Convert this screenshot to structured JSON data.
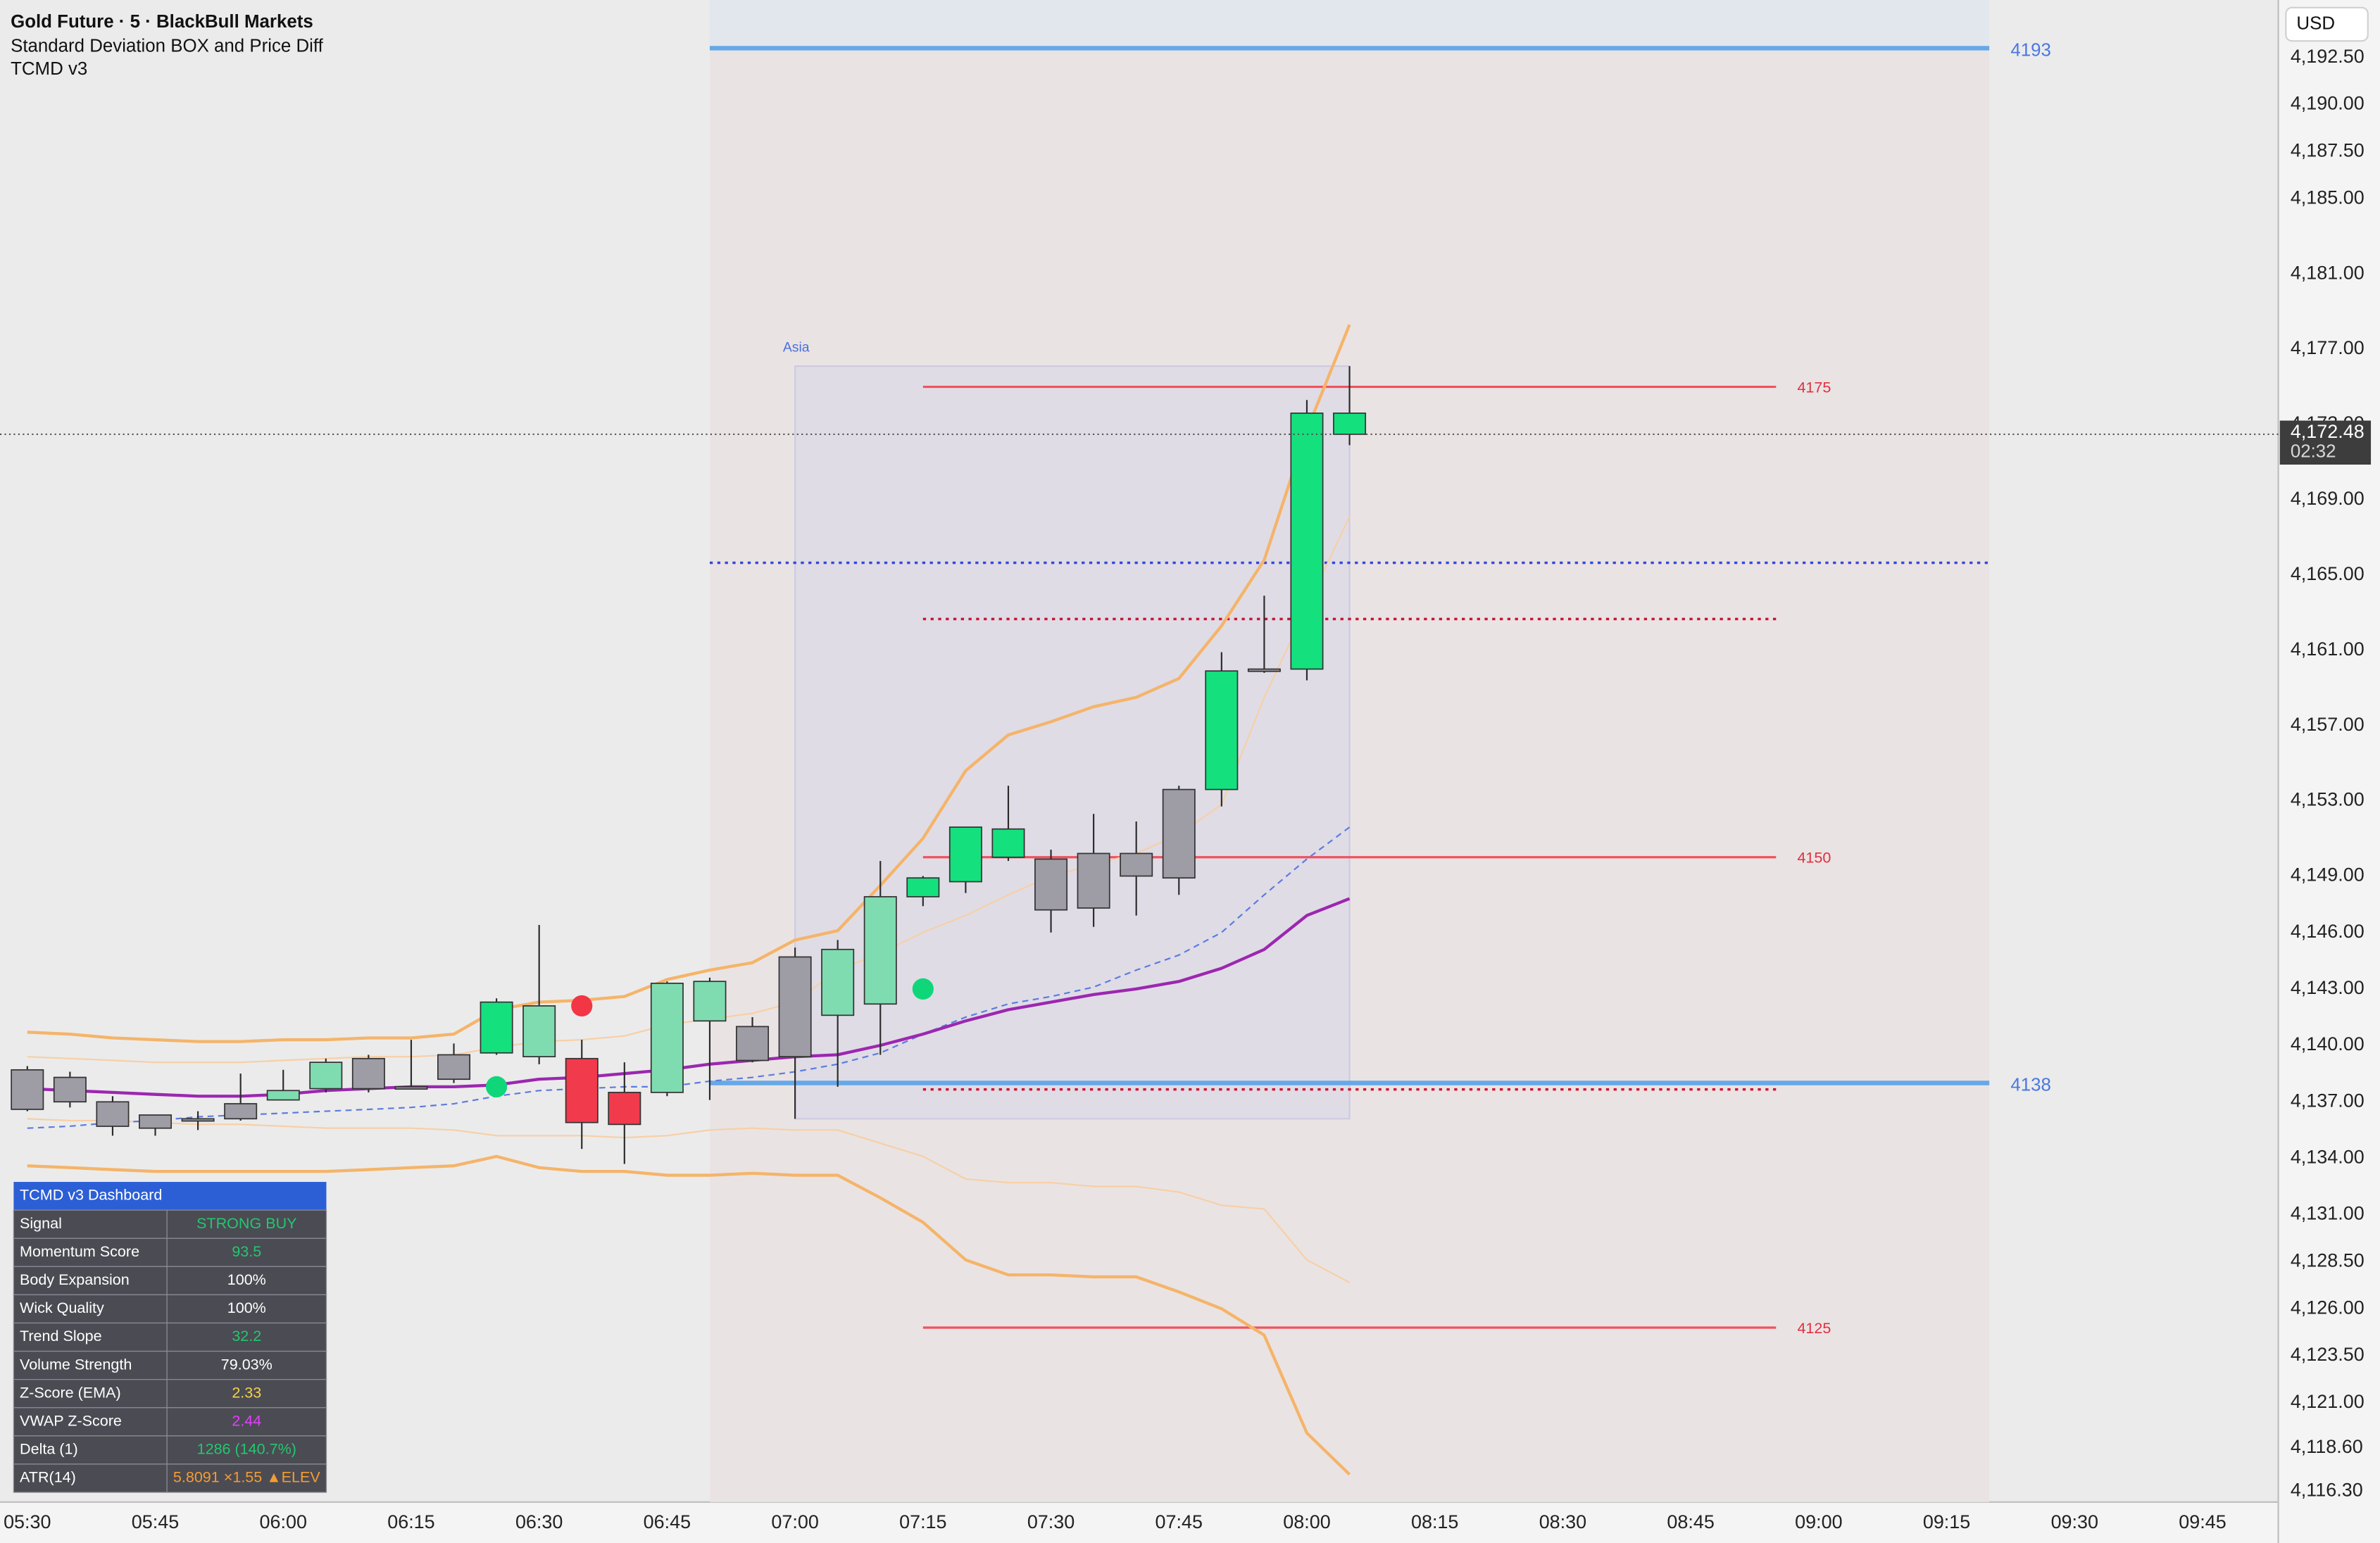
{
  "header": {
    "title": "Gold Future · 5 · BlackBull Markets",
    "indicators": [
      "Standard Deviation BOX and Price Diff",
      "TCMD v3"
    ],
    "currency": "USD"
  },
  "chart_data": {
    "type": "candlestick",
    "categories": [
      "05:30",
      null,
      null,
      "05:45",
      null,
      null,
      "06:00",
      null,
      null,
      "06:15",
      null,
      null,
      "06:30",
      null,
      null,
      "06:45",
      null,
      null,
      "07:00",
      null,
      null,
      "07:15",
      null,
      null,
      "07:30",
      null,
      null,
      "07:45",
      null,
      null,
      "08:00",
      null,
      null,
      "08:15",
      null,
      null,
      "08:30",
      null,
      null,
      "08:45",
      null,
      null,
      "09:00",
      null,
      null,
      "09:15",
      null,
      null,
      "09:30",
      null,
      null,
      "09:45"
    ],
    "open": [
      4136.6,
      4138.3,
      4137.0,
      4135.6,
      4136.1,
      4136.1,
      4137.1,
      4137.7,
      4137.7,
      4137.8,
      4138.2,
      4139.6,
      4139.4,
      4139.3,
      4137.5,
      4137.5,
      4141.3,
      4141.0,
      4139.4,
      4141.6,
      4142.2,
      4147.9,
      4148.7,
      4150.0,
      4149.9,
      4147.3,
      4149.0,
      4148.9,
      4153.6,
      4159.9,
      4160.0,
      4173.6,
      null,
      null,
      null,
      null,
      null,
      null,
      null,
      null,
      null,
      null,
      null,
      null,
      null,
      null,
      null,
      null,
      null,
      null,
      null,
      null
    ],
    "high": [
      4138.9,
      4138.6,
      4137.3,
      4136.3,
      4136.5,
      4138.5,
      4138.7,
      4139.3,
      4139.5,
      4140.3,
      4140.1,
      4142.5,
      4146.4,
      4140.3,
      4139.1,
      4143.4,
      4143.6,
      4141.5,
      4145.2,
      4145.6,
      4149.8,
      4149.0,
      4151.6,
      4153.8,
      4150.4,
      4152.3,
      4151.9,
      4153.8,
      4160.9,
      4163.9,
      4174.3,
      4176.1,
      null,
      null,
      null,
      null,
      null,
      null,
      null,
      null,
      null,
      null,
      null,
      null,
      null,
      null,
      null,
      null,
      null,
      null,
      null,
      null
    ],
    "low": [
      4136.5,
      4136.7,
      4135.2,
      4135.2,
      4135.5,
      4136.0,
      4137.1,
      4137.5,
      4137.5,
      4137.7,
      4138.0,
      4139.5,
      4139.0,
      4134.5,
      4133.7,
      4137.3,
      4137.1,
      4139.1,
      4136.1,
      4137.8,
      4139.5,
      4147.4,
      4148.1,
      4149.8,
      4146.0,
      4146.3,
      4146.9,
      4148.0,
      4152.7,
      4159.8,
      4159.4,
      4171.9,
      null,
      null,
      null,
      null,
      null,
      null,
      null,
      null,
      null,
      null,
      null,
      null,
      null,
      null,
      null,
      null,
      null,
      null,
      null,
      null
    ],
    "close": [
      4138.7,
      4137.0,
      4135.7,
      4136.3,
      4136.1,
      4136.9,
      4137.6,
      4139.1,
      4139.3,
      4137.8,
      4139.5,
      4142.3,
      4142.1,
      4135.9,
      4135.8,
      4143.3,
      4143.4,
      4139.2,
      4144.7,
      4145.1,
      4147.9,
      4148.9,
      4151.6,
      4151.5,
      4147.2,
      4150.2,
      4150.2,
      4153.6,
      4159.9,
      4160.0,
      4173.6,
      4172.48,
      null,
      null,
      null,
      null,
      null,
      null,
      null,
      null,
      null,
      null,
      null,
      null,
      null,
      null,
      null,
      null,
      null,
      null,
      null,
      null
    ],
    "bar_colors": [
      "#9e9da6",
      "#9e9da6",
      "#9e9da6",
      "#9e9da6",
      "#9e9da6",
      "#9e9da6",
      "#7fdcb0",
      "#7fdcb0",
      "#9e9da6",
      "#9e9da6",
      "#9e9da6",
      "#15e07e",
      "#7fdcb0",
      "#f23a4d",
      "#f23a4d",
      "#7fdcb0",
      "#7fdcb0",
      "#9e9da6",
      "#9e9da6",
      "#7fdcb0",
      "#7fdcb0",
      "#15e07e",
      "#15e07e",
      "#15e07e",
      "#9e9da6",
      "#9e9da6",
      "#9e9da6",
      "#9e9da6",
      "#15e07e",
      "#9e9da6",
      "#15e07e",
      "#15e07e",
      null,
      null,
      null,
      null,
      null,
      null,
      null,
      null,
      null,
      null,
      null,
      null,
      null,
      null,
      null,
      null,
      null,
      null,
      null,
      null
    ],
    "lines": [
      {
        "color": "#f5b469",
        "width": 2,
        "dashed": false,
        "values": [
          4140.7,
          4140.6,
          4140.4,
          4140.3,
          4140.2,
          4140.2,
          4140.3,
          4140.3,
          4140.4,
          4140.4,
          4140.6,
          4141.9,
          4142.3,
          4142.4,
          4142.6,
          4143.5,
          4144.0,
          4144.4,
          4145.6,
          4146.1,
          4148.5,
          4151.0,
          4154.6,
          4156.5,
          4157.2,
          4158.0,
          4158.5,
          4159.5,
          4162.3,
          4165.8,
          4172.7,
          4178.3,
          null,
          null,
          null,
          null,
          null,
          null,
          null,
          null,
          null,
          null,
          null,
          null,
          null,
          null,
          null,
          null,
          null,
          null,
          null,
          null
        ]
      },
      {
        "color": "#f7cfa6",
        "width": 1,
        "dashed": false,
        "values": [
          4139.4,
          4139.3,
          4139.2,
          4139.1,
          4139.1,
          4139.1,
          4139.2,
          4139.3,
          4139.4,
          4139.4,
          4139.5,
          4139.9,
          4140.2,
          4140.3,
          4140.5,
          4141.1,
          4141.4,
          4141.7,
          4142.3,
          4144.0,
          4144.9,
          4146.0,
          4146.9,
          4148.0,
          4149.0,
          4149.6,
          4150.2,
          4151.2,
          4152.8,
          4158.5,
          4163.3,
          4168.1,
          null,
          null,
          null,
          null,
          null,
          null,
          null,
          null,
          null,
          null,
          null,
          null,
          null,
          null,
          null,
          null,
          null,
          null,
          null,
          null
        ]
      },
      {
        "color": "#f7cfa6",
        "width": 1,
        "dashed": false,
        "values": [
          4136.1,
          4136.0,
          4136.0,
          4135.9,
          4135.8,
          4135.8,
          4135.7,
          4135.6,
          4135.6,
          4135.6,
          4135.5,
          4135.2,
          4135.2,
          4135.2,
          4135.1,
          4135.2,
          4135.5,
          4135.6,
          4135.5,
          4135.5,
          4134.8,
          4134.1,
          4132.9,
          4132.7,
          4132.7,
          4132.5,
          4132.5,
          4132.2,
          4131.5,
          4131.3,
          4128.6,
          4127.4,
          null,
          null,
          null,
          null,
          null,
          null,
          null,
          null,
          null,
          null,
          null,
          null,
          null,
          null,
          null,
          null,
          null,
          null,
          null,
          null
        ]
      },
      {
        "color": "#f5b469",
        "width": 2,
        "dashed": false,
        "values": [
          4133.6,
          4133.5,
          4133.4,
          4133.3,
          4133.3,
          4133.3,
          4133.3,
          4133.3,
          4133.4,
          4133.5,
          4133.6,
          4134.1,
          4133.5,
          4133.3,
          4133.3,
          4133.1,
          4133.1,
          4133.2,
          4133.1,
          4133.1,
          4131.9,
          4130.6,
          4128.6,
          4127.8,
          4127.8,
          4127.7,
          4127.7,
          4126.9,
          4126.0,
          4124.6,
          4119.4,
          4117.2,
          null,
          null,
          null,
          null,
          null,
          null,
          null,
          null,
          null,
          null,
          null,
          null,
          null,
          null,
          null,
          null,
          null,
          null,
          null,
          null
        ]
      },
      {
        "color": "#5b7be0",
        "width": 1,
        "dashed": true,
        "values": [
          4135.6,
          4135.7,
          4135.9,
          4136.0,
          4136.2,
          4136.3,
          4136.4,
          4136.5,
          4136.6,
          4136.7,
          4136.9,
          4137.3,
          4137.6,
          4137.7,
          4137.8,
          4137.8,
          4138.1,
          4138.3,
          4138.6,
          4139.0,
          4139.6,
          4140.6,
          4141.5,
          4142.2,
          4142.6,
          4143.1,
          4144.0,
          4144.8,
          4146.0,
          4148.0,
          4149.9,
          4151.6,
          null,
          null,
          null,
          null,
          null,
          null,
          null,
          null,
          null,
          null,
          null,
          null,
          null,
          null,
          null,
          null,
          null,
          null,
          null,
          null
        ]
      },
      {
        "color": "#9c27b0",
        "width": 2,
        "dashed": false,
        "values": [
          4137.7,
          4137.6,
          4137.5,
          4137.4,
          4137.3,
          4137.3,
          4137.4,
          4137.6,
          4137.7,
          4137.8,
          4137.8,
          4137.9,
          4138.2,
          4138.3,
          4138.5,
          4138.7,
          4139.0,
          4139.2,
          4139.4,
          4139.5,
          4140.0,
          4140.6,
          4141.3,
          4141.9,
          4142.3,
          4142.7,
          4143.0,
          4143.4,
          4144.1,
          4145.1,
          4146.9,
          4147.8,
          null,
          null,
          null,
          null,
          null,
          null,
          null,
          null,
          null,
          null,
          null,
          null,
          null,
          null,
          null,
          null,
          null,
          null,
          null,
          null
        ]
      }
    ],
    "buy_signals": {
      "color": "#10d67a",
      "values": [
        null,
        null,
        null,
        null,
        null,
        null,
        null,
        null,
        null,
        null,
        null,
        4137.8,
        null,
        null,
        null,
        null,
        null,
        null,
        null,
        null,
        null,
        4143.0,
        null,
        null,
        null,
        null,
        null,
        null,
        null,
        null,
        null,
        null,
        null,
        null,
        null,
        null,
        null,
        null,
        null,
        null,
        null,
        null,
        null,
        null,
        null,
        null,
        null,
        null,
        null,
        null,
        null,
        null
      ]
    },
    "sell_signals": {
      "color": "#f23645",
      "values": [
        null,
        null,
        null,
        null,
        null,
        null,
        null,
        null,
        null,
        null,
        null,
        null,
        null,
        4142.1,
        null,
        null,
        null,
        null,
        null,
        null,
        null,
        null,
        null,
        null,
        null,
        null,
        null,
        null,
        null,
        null,
        null,
        null,
        null,
        null,
        null,
        null,
        null,
        null,
        null,
        null,
        null,
        null,
        null,
        null,
        null,
        null,
        null,
        null,
        null,
        null,
        null,
        null
      ]
    },
    "session_levels": [
      {
        "value": 4193,
        "color": "#64a8e8",
        "dotted": false
      },
      {
        "value": 4165.65,
        "color": "#3348e0",
        "dotted": true
      },
      {
        "value": 4138,
        "color": "#64a8e8",
        "dotted": false
      }
    ],
    "range_levels": [
      {
        "value": 4175,
        "color": "#f0525e",
        "dotted": false
      },
      {
        "value": 4162.66,
        "color": "#d01030",
        "dotted": true
      },
      {
        "value": 4150,
        "color": "#f0525e",
        "dotted": false
      },
      {
        "value": 4137.66,
        "color": "#d01030",
        "dotted": true
      },
      {
        "value": 4125,
        "color": "#f0525e",
        "dotted": false
      }
    ],
    "asia_box": {
      "label": "Asia",
      "top": 4176.1,
      "bottom": 4136.1
    },
    "last_price": {
      "value": 4172.48,
      "label": "4,172.48"
    },
    "countdown": "02:32",
    "ylim": [
      4115.73,
      4195.56
    ],
    "yticks": [
      {
        "value": 4192.5,
        "label": "4,192.50"
      },
      {
        "value": 4190,
        "label": "4,190.00"
      },
      {
        "value": 4187.5,
        "label": "4,187.50"
      },
      {
        "value": 4185,
        "label": "4,185.00"
      },
      {
        "value": 4181,
        "label": "4,181.00"
      },
      {
        "value": 4177,
        "label": "4,177.00"
      },
      {
        "value": 4173,
        "label": "4,173.00"
      },
      {
        "value": 4169,
        "label": "4,169.00"
      },
      {
        "value": 4165,
        "label": "4,165.00"
      },
      {
        "value": 4161,
        "label": "4,161.00"
      },
      {
        "value": 4157,
        "label": "4,157.00"
      },
      {
        "value": 4153,
        "label": "4,153.00"
      },
      {
        "value": 4149,
        "label": "4,149.00"
      },
      {
        "value": 4146,
        "label": "4,146.00"
      },
      {
        "value": 4143,
        "label": "4,143.00"
      },
      {
        "value": 4140,
        "label": "4,140.00"
      },
      {
        "value": 4137,
        "label": "4,137.00"
      },
      {
        "value": 4134,
        "label": "4,134.00"
      },
      {
        "value": 4131,
        "label": "4,131.00"
      },
      {
        "value": 4128.5,
        "label": "4,128.50"
      },
      {
        "value": 4126,
        "label": "4,126.00"
      },
      {
        "value": 4123.5,
        "label": "4,123.50"
      },
      {
        "value": 4121,
        "label": "4,121.00"
      },
      {
        "value": 4118.6,
        "label": "4,118.60"
      },
      {
        "value": 4116.3,
        "label": "4,116.30"
      }
    ]
  },
  "dashboard": {
    "title": "TCMD v3 Dashboard",
    "rows": [
      {
        "label": "Signal",
        "value": "STRONG BUY",
        "color": "#22c76e"
      },
      {
        "label": "Momentum Score",
        "value": "93.5",
        "color": "#22c76e"
      },
      {
        "label": "Body Expansion",
        "value": "100%",
        "color": "#ffffff"
      },
      {
        "label": "Wick Quality",
        "value": "100%",
        "color": "#ffffff"
      },
      {
        "label": "Trend Slope",
        "value": "32.2",
        "color": "#22c76e"
      },
      {
        "label": "Volume Strength",
        "value": "79.03%",
        "color": "#ffffff"
      },
      {
        "label": "Z-Score (EMA)",
        "value": "2.33",
        "color": "#f3d34a"
      },
      {
        "label": "VWAP Z-Score",
        "value": "2.44",
        "color": "#e040fb"
      },
      {
        "label": "Delta (1)",
        "value": "1286 (140.7%)",
        "color": "#22c76e"
      },
      {
        "label": "ATR(14)",
        "value": "5.8091 ×1.55 ▲ELEV",
        "color": "#f39c34"
      }
    ]
  }
}
